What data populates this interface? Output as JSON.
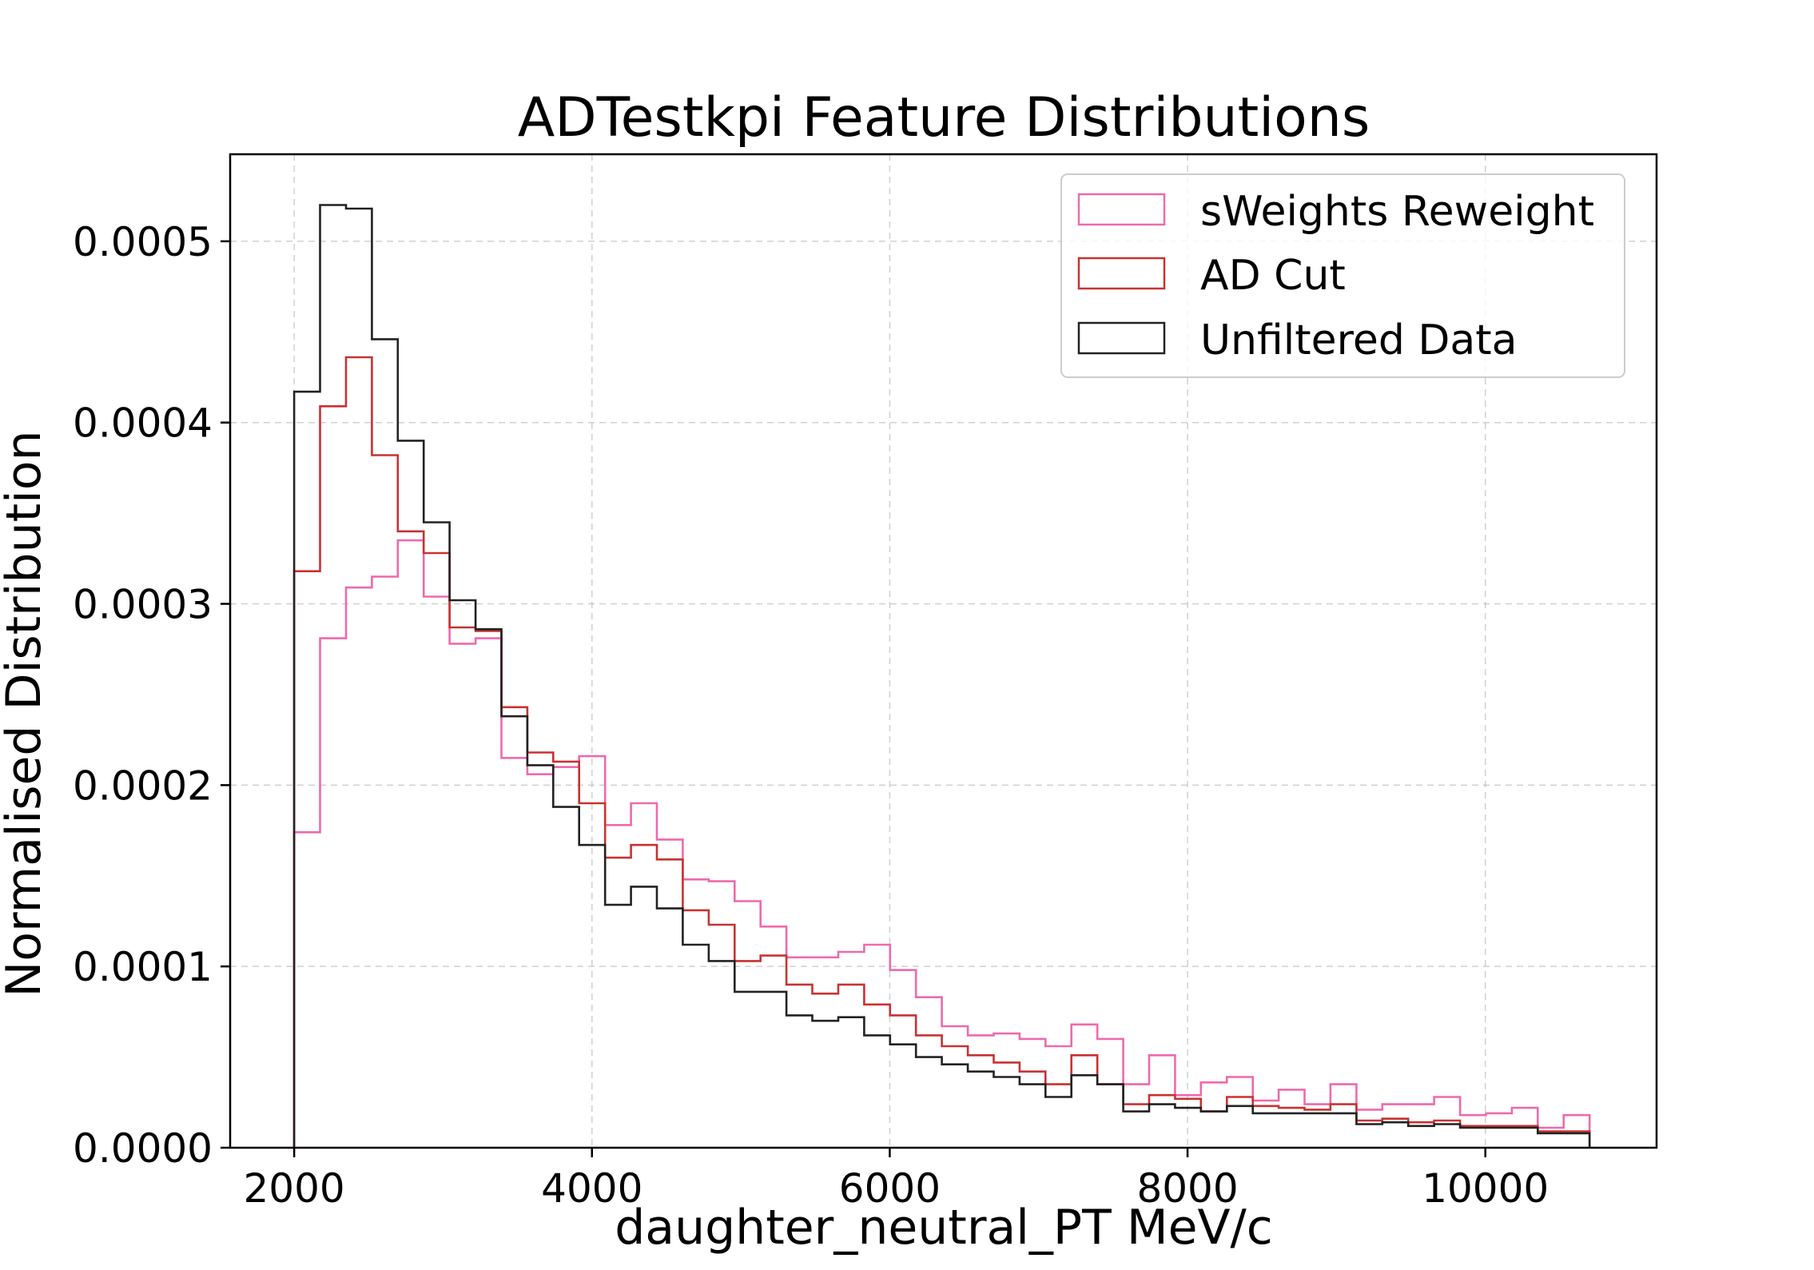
{
  "chart_data": {
    "type": "step-histogram",
    "title": "ADTestkpi Feature Distributions",
    "xlabel": "daughter_neutral_PT MeV/c",
    "ylabel": "Normalised Distribution",
    "xlim": [
      1570,
      11150
    ],
    "ylim": [
      0,
      0.000548
    ],
    "xticks": [
      2000,
      4000,
      6000,
      8000,
      10000
    ],
    "xtick_labels": [
      "2000",
      "4000",
      "6000",
      "8000",
      "10000"
    ],
    "yticks": [
      0,
      0.0001,
      0.0002,
      0.0003,
      0.0004,
      0.0005
    ],
    "ytick_labels": [
      "0.0000",
      "0.0001",
      "0.0002",
      "0.0003",
      "0.0004",
      "0.0005"
    ],
    "grid": true,
    "legend_position": "top-right",
    "bin_edges": [
      2000,
      2174,
      2348,
      2522,
      2696,
      2870,
      3044,
      3218,
      3392,
      3566,
      3740,
      3914,
      4088,
      4262,
      4436,
      4610,
      4784,
      4958,
      5132,
      5306,
      5480,
      5654,
      5828,
      6002,
      6176,
      6350,
      6524,
      6698,
      6872,
      7046,
      7220,
      7394,
      7568,
      7742,
      7916,
      8090,
      8264,
      8438,
      8612,
      8786,
      8960,
      9134,
      9308,
      9482,
      9656,
      9830,
      10004,
      10178,
      10352,
      10526,
      10700
    ],
    "series": [
      {
        "name": "sWeights Reweight",
        "color": "#ee6aac",
        "values": [
          0.000174,
          0.000281,
          0.000309,
          0.000315,
          0.000335,
          0.000304,
          0.000278,
          0.000281,
          0.000215,
          0.000206,
          0.00021,
          0.000216,
          0.000178,
          0.00019,
          0.00017,
          0.000148,
          0.000147,
          0.000136,
          0.000122,
          0.000105,
          0.000105,
          0.000108,
          0.000112,
          9.8e-05,
          8.3e-05,
          6.7e-05,
          6.2e-05,
          6.3e-05,
          6e-05,
          5.6e-05,
          6.8e-05,
          6e-05,
          3.5e-05,
          5.1e-05,
          2.9e-05,
          3.6e-05,
          3.9e-05,
          2.6e-05,
          3.2e-05,
          2.4e-05,
          3.5e-05,
          2.1e-05,
          2.4e-05,
          2.4e-05,
          2.8e-05,
          1.8e-05,
          1.9e-05,
          2.2e-05,
          1.1e-05,
          1.8e-05
        ]
      },
      {
        "name": "AD Cut",
        "color": "#c83232",
        "values": [
          0.000318,
          0.000409,
          0.000436,
          0.000382,
          0.00034,
          0.000328,
          0.000287,
          0.000285,
          0.000243,
          0.000218,
          0.000213,
          0.00019,
          0.00016,
          0.000167,
          0.000159,
          0.000131,
          0.000123,
          0.000103,
          0.000106,
          9e-05,
          8.5e-05,
          9e-05,
          7.9e-05,
          7.3e-05,
          6.2e-05,
          5.6e-05,
          5.1e-05,
          4.7e-05,
          4.2e-05,
          3.5e-05,
          5.1e-05,
          3.5e-05,
          2.4e-05,
          2.9e-05,
          2.7e-05,
          2e-05,
          2.8e-05,
          2.3e-05,
          2.2e-05,
          2.1e-05,
          2.4e-05,
          1.5e-05,
          1.6e-05,
          1.4e-05,
          1.5e-05,
          1.2e-05,
          1.2e-05,
          1.2e-05,
          9e-06,
          9e-06
        ]
      },
      {
        "name": "Unfiltered Data",
        "color": "#222222",
        "values": [
          0.000417,
          0.00052,
          0.000518,
          0.000446,
          0.00039,
          0.000345,
          0.000302,
          0.000286,
          0.000238,
          0.000211,
          0.000188,
          0.000167,
          0.000134,
          0.000144,
          0.000132,
          0.000112,
          0.000103,
          8.6e-05,
          8.6e-05,
          7.3e-05,
          7e-05,
          7.2e-05,
          6.2e-05,
          5.7e-05,
          5e-05,
          4.6e-05,
          4.2e-05,
          3.9e-05,
          3.5e-05,
          2.8e-05,
          4e-05,
          3.5e-05,
          2e-05,
          2.4e-05,
          2.2e-05,
          2e-05,
          2.3e-05,
          1.9e-05,
          1.9e-05,
          1.9e-05,
          1.9e-05,
          1.3e-05,
          1.4e-05,
          1.2e-05,
          1.3e-05,
          1.1e-05,
          1.1e-05,
          1.1e-05,
          8e-06,
          8e-06
        ]
      }
    ],
    "legend_entries": [
      "sWeights Reweight",
      "AD Cut",
      "Unfiltered Data"
    ]
  }
}
